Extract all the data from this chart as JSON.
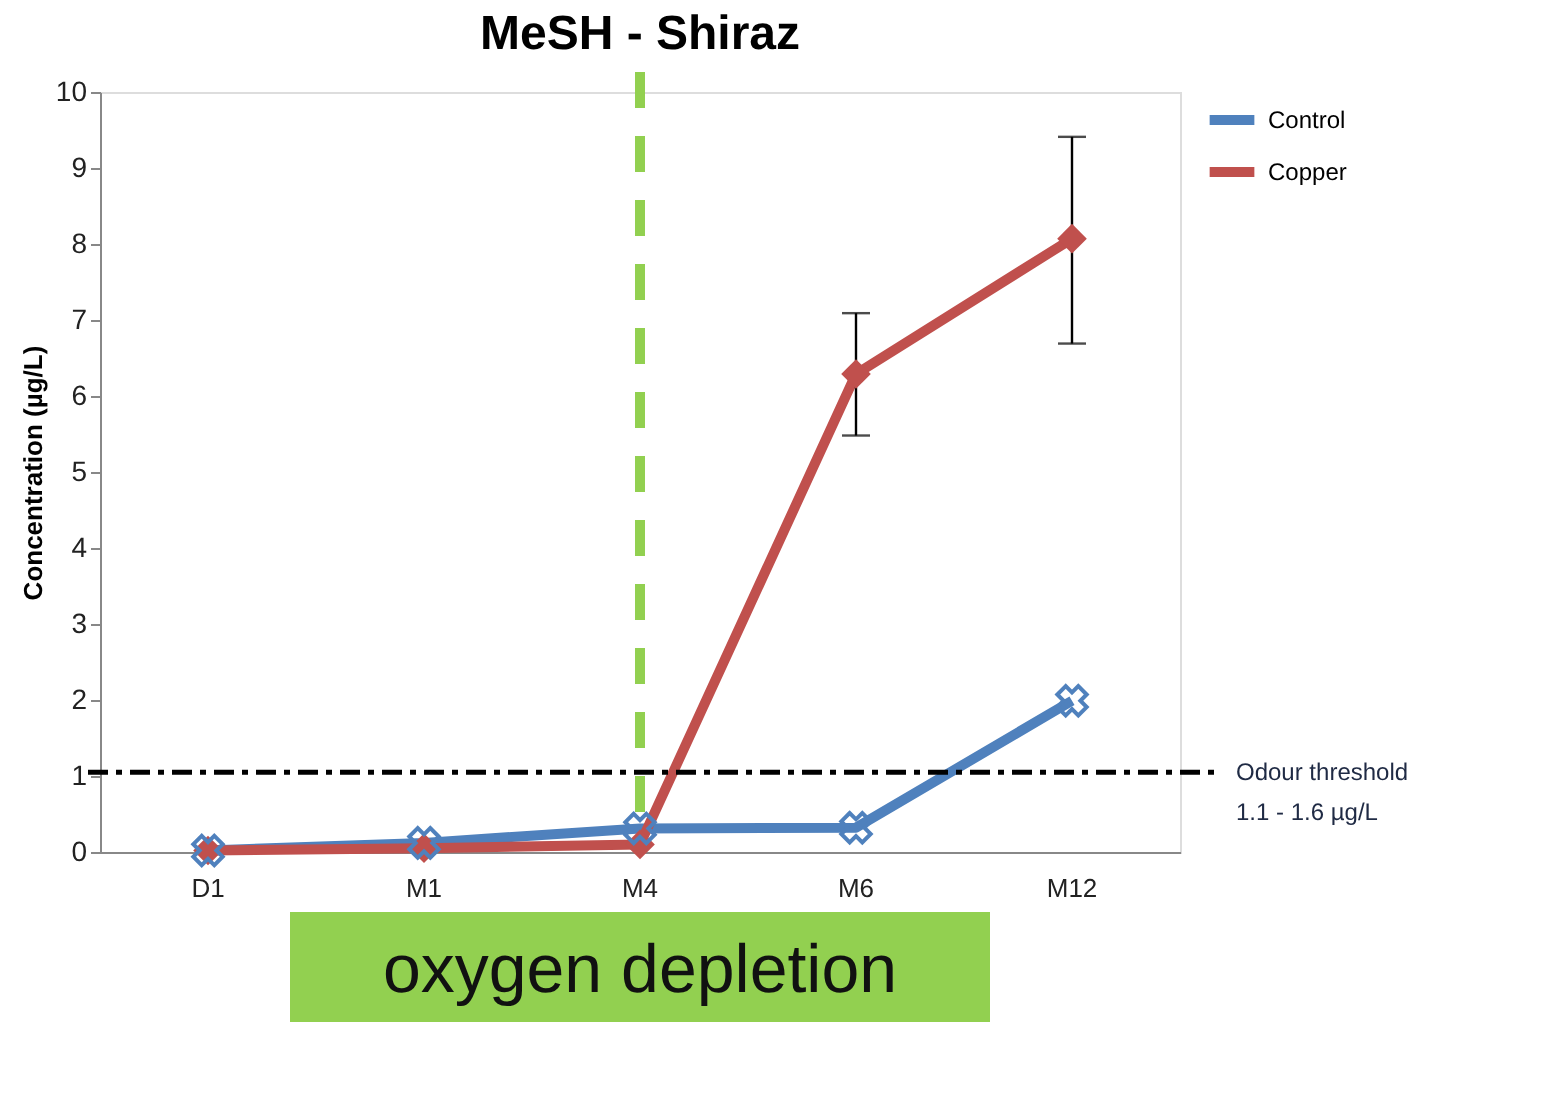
{
  "chart_data": {
    "type": "line",
    "title": "MeSH - Shiraz",
    "ylabel": "Concentration (µg/L)",
    "categories": [
      "D1",
      "M1",
      "M4",
      "M6",
      "M12"
    ],
    "series": [
      {
        "name": "Control",
        "color": "#4f81bd",
        "marker": "cross",
        "values": [
          0.02,
          0.12,
          0.31,
          0.32,
          1.99
        ]
      },
      {
        "name": "Copper",
        "color": "#c0504d",
        "marker": "diamond",
        "values": [
          0.02,
          0.05,
          0.1,
          6.29,
          8.07
        ],
        "errors": [
          null,
          null,
          null,
          [
            5.48,
            7.09
          ],
          [
            6.69,
            9.41
          ]
        ]
      }
    ],
    "ylim": [
      0,
      10
    ],
    "yticks": [
      0,
      1,
      2,
      3,
      4,
      5,
      6,
      7,
      8,
      9,
      10
    ],
    "grid": false,
    "legend": "top right",
    "ref_lines": [
      {
        "axis": "y",
        "value": 1.05,
        "label": "Odour threshold\n1.1 - 1.6 µg/L",
        "color": "#000000",
        "line_style": "dashdot"
      },
      {
        "axis": "x",
        "value": "M4",
        "label": "oxygen depletion",
        "color": "#92d050",
        "line_style": "dashed"
      }
    ]
  }
}
